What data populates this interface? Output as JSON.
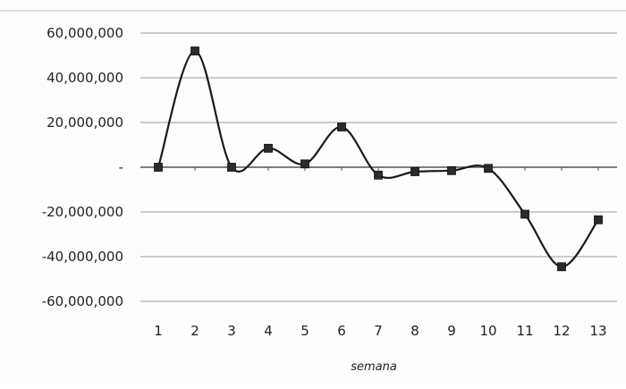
{
  "chart_data": {
    "type": "line",
    "title": "",
    "xlabel": "semana",
    "ylabel": "",
    "categories": [
      "1",
      "2",
      "3",
      "4",
      "5",
      "6",
      "7",
      "8",
      "9",
      "10",
      "11",
      "12",
      "13"
    ],
    "series": [
      {
        "values": [
          0,
          52000000,
          0,
          8500000,
          1500000,
          18000000,
          -3500000,
          -2000000,
          -1500000,
          -500000,
          -21000000,
          -44500000,
          -23500000
        ]
      }
    ],
    "ylim": [
      -60000000,
      60000000
    ],
    "yticks": [
      60000000,
      40000000,
      20000000,
      0,
      -20000000,
      -40000000,
      -60000000
    ],
    "ytick_labels": [
      "60,000,000",
      "40,000,000",
      "20,000,000",
      "-",
      "-20,000,000",
      "-40,000,000",
      "-60,000,000"
    ],
    "grid": true,
    "legend": "none",
    "colors": {
      "line": "#1a1a1a",
      "marker": "#2b2b2b",
      "grid": "#9a9a9a",
      "axis": "#555555"
    }
  }
}
